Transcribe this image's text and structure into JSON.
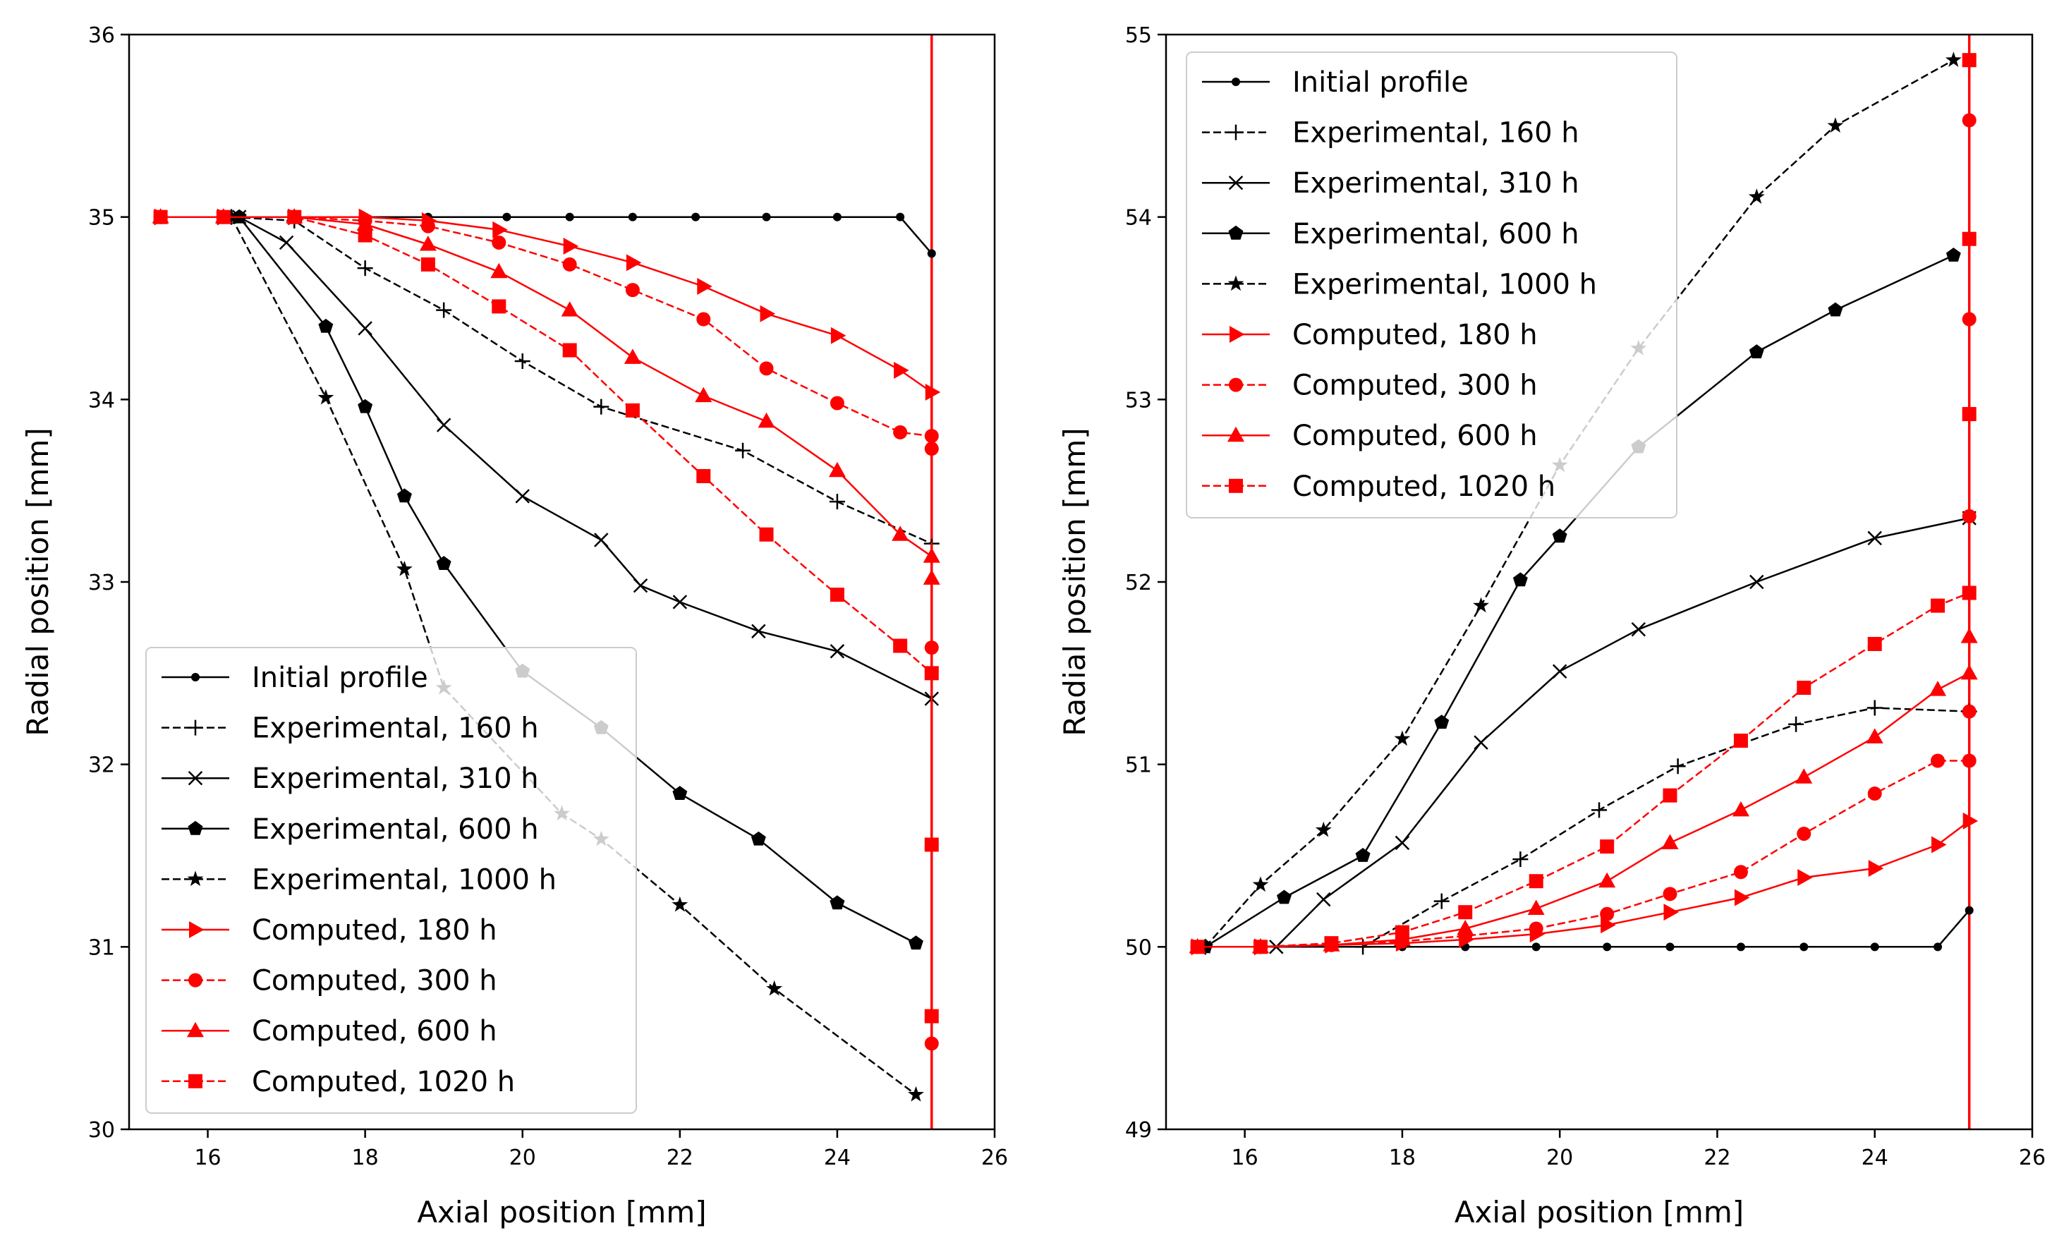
{
  "chart_data": [
    {
      "type": "line",
      "xlabel": "Axial position [mm]",
      "ylabel": "Radial position [mm]",
      "xlim": [
        15,
        26
      ],
      "ylim": [
        30,
        36
      ],
      "xticks": [
        16,
        18,
        20,
        22,
        24,
        26
      ],
      "yticks": [
        30,
        31,
        32,
        33,
        34,
        35,
        36
      ],
      "legend_position": "lower-left",
      "series": [
        {
          "name": "Initial profile",
          "color": "#000000",
          "marker": "circle",
          "dash": "solid",
          "points": [
            [
              16.3,
              35
            ],
            [
              17.1,
              35
            ],
            [
              18,
              35
            ],
            [
              18.8,
              35
            ],
            [
              19.8,
              35
            ],
            [
              20.6,
              35
            ],
            [
              21.4,
              35
            ],
            [
              22.2,
              35
            ],
            [
              23.1,
              35
            ],
            [
              24,
              35
            ],
            [
              24.8,
              35
            ],
            [
              25.2,
              34.8
            ]
          ]
        },
        {
          "name": "Experimental, 160 h",
          "color": "#000000",
          "marker": "plus",
          "dash": "dashed",
          "points": [
            [
              16.3,
              35
            ],
            [
              17.1,
              34.98
            ],
            [
              18,
              34.72
            ],
            [
              19,
              34.49
            ],
            [
              20,
              34.21
            ],
            [
              21,
              33.96
            ],
            [
              22.8,
              33.72
            ],
            [
              24,
              33.44
            ],
            [
              25.2,
              33.21
            ]
          ]
        },
        {
          "name": "Experimental, 310 h",
          "color": "#000000",
          "marker": "x",
          "dash": "solid",
          "points": [
            [
              16.4,
              35
            ],
            [
              17,
              34.86
            ],
            [
              18,
              34.39
            ],
            [
              19,
              33.86
            ],
            [
              20,
              33.47
            ],
            [
              21,
              33.23
            ],
            [
              21.5,
              32.98
            ],
            [
              22,
              32.89
            ],
            [
              23,
              32.73
            ],
            [
              24,
              32.62
            ],
            [
              25.2,
              32.36
            ]
          ]
        },
        {
          "name": "Experimental, 600 h",
          "color": "#000000",
          "marker": "pentagon",
          "dash": "solid",
          "points": [
            [
              16.4,
              35
            ],
            [
              17.5,
              34.4
            ],
            [
              18,
              33.96
            ],
            [
              18.5,
              33.47
            ],
            [
              19,
              33.1
            ],
            [
              20,
              32.51
            ],
            [
              21,
              32.2
            ],
            [
              22,
              31.84
            ],
            [
              23,
              31.59
            ],
            [
              24,
              31.24
            ],
            [
              25,
              31.02
            ]
          ]
        },
        {
          "name": "Experimental, 1000 h",
          "color": "#000000",
          "marker": "star",
          "dash": "dashed",
          "points": [
            [
              16.3,
              35
            ],
            [
              17.5,
              34.01
            ],
            [
              18.5,
              33.07
            ],
            [
              19,
              32.42
            ],
            [
              20.5,
              31.73
            ],
            [
              21,
              31.59
            ],
            [
              22,
              31.23
            ],
            [
              23.2,
              30.77
            ],
            [
              25,
              30.19
            ]
          ]
        },
        {
          "name": "Computed, 180 h",
          "color": "#ff0000",
          "marker": "triangle-right",
          "dash": "solid",
          "points": [
            [
              15.4,
              35
            ],
            [
              16.2,
              35
            ],
            [
              17.1,
              35
            ],
            [
              18,
              35
            ],
            [
              18.8,
              34.98
            ],
            [
              19.7,
              34.93
            ],
            [
              20.6,
              34.84
            ],
            [
              21.4,
              34.75
            ],
            [
              22.3,
              34.62
            ],
            [
              23.1,
              34.47
            ],
            [
              24,
              34.35
            ],
            [
              24.8,
              34.16
            ],
            [
              25.2,
              34.04
            ]
          ]
        },
        {
          "name": "Computed, 300 h",
          "color": "#ff0000",
          "marker": "circle",
          "dash": "dashed",
          "points": [
            [
              15.4,
              35
            ],
            [
              16.2,
              35
            ],
            [
              17.1,
              35
            ],
            [
              18,
              34.98
            ],
            [
              18.8,
              34.95
            ],
            [
              19.7,
              34.86
            ],
            [
              20.6,
              34.74
            ],
            [
              21.4,
              34.6
            ],
            [
              22.3,
              34.44
            ],
            [
              23.1,
              34.17
            ],
            [
              24,
              33.98
            ],
            [
              24.8,
              33.82
            ],
            [
              25.2,
              33.8
            ],
            [
              25.2,
              33.73
            ],
            [
              25.2,
              32.64
            ],
            [
              25.2,
              30.47
            ]
          ]
        },
        {
          "name": "Computed, 600 h",
          "color": "#ff0000",
          "marker": "triangle-up",
          "dash": "solid",
          "points": [
            [
              15.4,
              35
            ],
            [
              16.2,
              35
            ],
            [
              17.1,
              35
            ],
            [
              18,
              34.96
            ],
            [
              18.8,
              34.85
            ],
            [
              19.7,
              34.7
            ],
            [
              20.6,
              34.49
            ],
            [
              21.4,
              34.23
            ],
            [
              22.3,
              34.02
            ],
            [
              23.1,
              33.88
            ],
            [
              24,
              33.61
            ],
            [
              24.8,
              33.26
            ],
            [
              25.2,
              33.14
            ],
            [
              25.2,
              33.02
            ]
          ]
        },
        {
          "name": "Computed, 1020 h",
          "color": "#ff0000",
          "marker": "square",
          "dash": "dashed",
          "points": [
            [
              15.4,
              35
            ],
            [
              16.2,
              35
            ],
            [
              17.1,
              35
            ],
            [
              18,
              34.9
            ],
            [
              18.8,
              34.74
            ],
            [
              19.7,
              34.51
            ],
            [
              20.6,
              34.27
            ],
            [
              21.4,
              33.94
            ],
            [
              22.3,
              33.58
            ],
            [
              23.1,
              33.26
            ],
            [
              24,
              32.93
            ],
            [
              24.8,
              32.65
            ],
            [
              25.2,
              32.5
            ],
            [
              25.2,
              31.56
            ],
            [
              25.2,
              30.62
            ]
          ]
        }
      ],
      "vertical_line": {
        "x": 25.2,
        "color": "#ff0000"
      }
    },
    {
      "type": "line",
      "xlabel": "Axial position [mm]",
      "ylabel": "Radial position [mm]",
      "xlim": [
        15,
        26
      ],
      "ylim": [
        49,
        55
      ],
      "xticks": [
        16,
        18,
        20,
        22,
        24,
        26
      ],
      "yticks": [
        49,
        50,
        51,
        52,
        53,
        54,
        55
      ],
      "legend_position": "upper-left",
      "series": [
        {
          "name": "Initial profile",
          "color": "#000000",
          "marker": "circle",
          "dash": "solid",
          "points": [
            [
              15.4,
              50
            ],
            [
              16.2,
              50
            ],
            [
              17.1,
              50
            ],
            [
              18,
              50
            ],
            [
              18.8,
              50
            ],
            [
              19.7,
              50
            ],
            [
              20.6,
              50
            ],
            [
              21.4,
              50
            ],
            [
              22.3,
              50
            ],
            [
              23.1,
              50
            ],
            [
              24,
              50
            ],
            [
              24.8,
              50
            ],
            [
              25.2,
              50.2
            ]
          ]
        },
        {
          "name": "Experimental, 160 h",
          "color": "#000000",
          "marker": "plus",
          "dash": "dashed",
          "points": [
            [
              15.5,
              50
            ],
            [
              17.5,
              50
            ],
            [
              18.5,
              50.25
            ],
            [
              19.5,
              50.48
            ],
            [
              20.5,
              50.75
            ],
            [
              21.5,
              50.99
            ],
            [
              23,
              51.22
            ],
            [
              24,
              51.31
            ],
            [
              25.2,
              51.29
            ]
          ]
        },
        {
          "name": "Experimental, 310 h",
          "color": "#000000",
          "marker": "x",
          "dash": "solid",
          "points": [
            [
              16.4,
              50
            ],
            [
              17,
              50.26
            ],
            [
              18,
              50.57
            ],
            [
              19,
              51.12
            ],
            [
              20,
              51.51
            ],
            [
              21,
              51.74
            ],
            [
              22.5,
              52
            ],
            [
              24,
              52.24
            ],
            [
              25.2,
              52.35
            ]
          ]
        },
        {
          "name": "Experimental, 600 h",
          "color": "#000000",
          "marker": "pentagon",
          "dash": "solid",
          "points": [
            [
              15.5,
              50
            ],
            [
              16.5,
              50.27
            ],
            [
              17.5,
              50.5
            ],
            [
              18.5,
              51.23
            ],
            [
              19.5,
              52.01
            ],
            [
              20,
              52.25
            ],
            [
              21,
              52.74
            ],
            [
              22.5,
              53.26
            ],
            [
              23.5,
              53.49
            ],
            [
              25,
              53.79
            ]
          ]
        },
        {
          "name": "Experimental, 1000 h",
          "color": "#000000",
          "marker": "star",
          "dash": "dashed",
          "points": [
            [
              15.5,
              50
            ],
            [
              16.2,
              50.34
            ],
            [
              17,
              50.64
            ],
            [
              18,
              51.14
            ],
            [
              19,
              51.87
            ],
            [
              20,
              52.64
            ],
            [
              21,
              53.28
            ],
            [
              22.5,
              54.11
            ],
            [
              23.5,
              54.5
            ],
            [
              25,
              54.86
            ]
          ]
        },
        {
          "name": "Computed, 180 h",
          "color": "#ff0000",
          "marker": "triangle-right",
          "dash": "solid",
          "points": [
            [
              15.4,
              50
            ],
            [
              16.2,
              50
            ],
            [
              17.1,
              50.01
            ],
            [
              18,
              50.02
            ],
            [
              18.8,
              50.04
            ],
            [
              19.7,
              50.07
            ],
            [
              20.6,
              50.12
            ],
            [
              21.4,
              50.19
            ],
            [
              22.3,
              50.27
            ],
            [
              23.1,
              50.38
            ],
            [
              24,
              50.43
            ],
            [
              24.8,
              50.56
            ],
            [
              25.2,
              50.69
            ]
          ]
        },
        {
          "name": "Computed, 300 h",
          "color": "#ff0000",
          "marker": "circle",
          "dash": "dashed",
          "points": [
            [
              15.4,
              50
            ],
            [
              16.2,
              50
            ],
            [
              17.1,
              50.01
            ],
            [
              18,
              50.03
            ],
            [
              18.8,
              50.06
            ],
            [
              19.7,
              50.1
            ],
            [
              20.6,
              50.18
            ],
            [
              21.4,
              50.29
            ],
            [
              22.3,
              50.41
            ],
            [
              23.1,
              50.62
            ],
            [
              24,
              50.84
            ],
            [
              24.8,
              51.02
            ],
            [
              25.2,
              51.02
            ],
            [
              25.2,
              51.29
            ],
            [
              25.2,
              52.36
            ],
            [
              25.2,
              53.44
            ],
            [
              25.2,
              54.53
            ]
          ]
        },
        {
          "name": "Computed, 600 h",
          "color": "#ff0000",
          "marker": "triangle-up",
          "dash": "solid",
          "points": [
            [
              15.4,
              50
            ],
            [
              16.2,
              50
            ],
            [
              17.1,
              50.01
            ],
            [
              18,
              50.04
            ],
            [
              18.8,
              50.1
            ],
            [
              19.7,
              50.21
            ],
            [
              20.6,
              50.36
            ],
            [
              21.4,
              50.57
            ],
            [
              22.3,
              50.75
            ],
            [
              23.1,
              50.93
            ],
            [
              24,
              51.15
            ],
            [
              24.8,
              51.41
            ],
            [
              25.2,
              51.5
            ],
            [
              25.2,
              51.7
            ]
          ]
        },
        {
          "name": "Computed, 1020 h",
          "color": "#ff0000",
          "marker": "square",
          "dash": "dashed",
          "points": [
            [
              15.4,
              50
            ],
            [
              16.2,
              50
            ],
            [
              17.1,
              50.02
            ],
            [
              18,
              50.08
            ],
            [
              18.8,
              50.19
            ],
            [
              19.7,
              50.36
            ],
            [
              20.6,
              50.55
            ],
            [
              21.4,
              50.83
            ],
            [
              22.3,
              51.13
            ],
            [
              23.1,
              51.42
            ],
            [
              24,
              51.66
            ],
            [
              24.8,
              51.87
            ],
            [
              25.2,
              51.94
            ],
            [
              25.2,
              52.92
            ],
            [
              25.2,
              53.88
            ],
            [
              25.2,
              54.86
            ]
          ]
        }
      ],
      "vertical_line": {
        "x": 25.2,
        "color": "#ff0000"
      }
    }
  ]
}
